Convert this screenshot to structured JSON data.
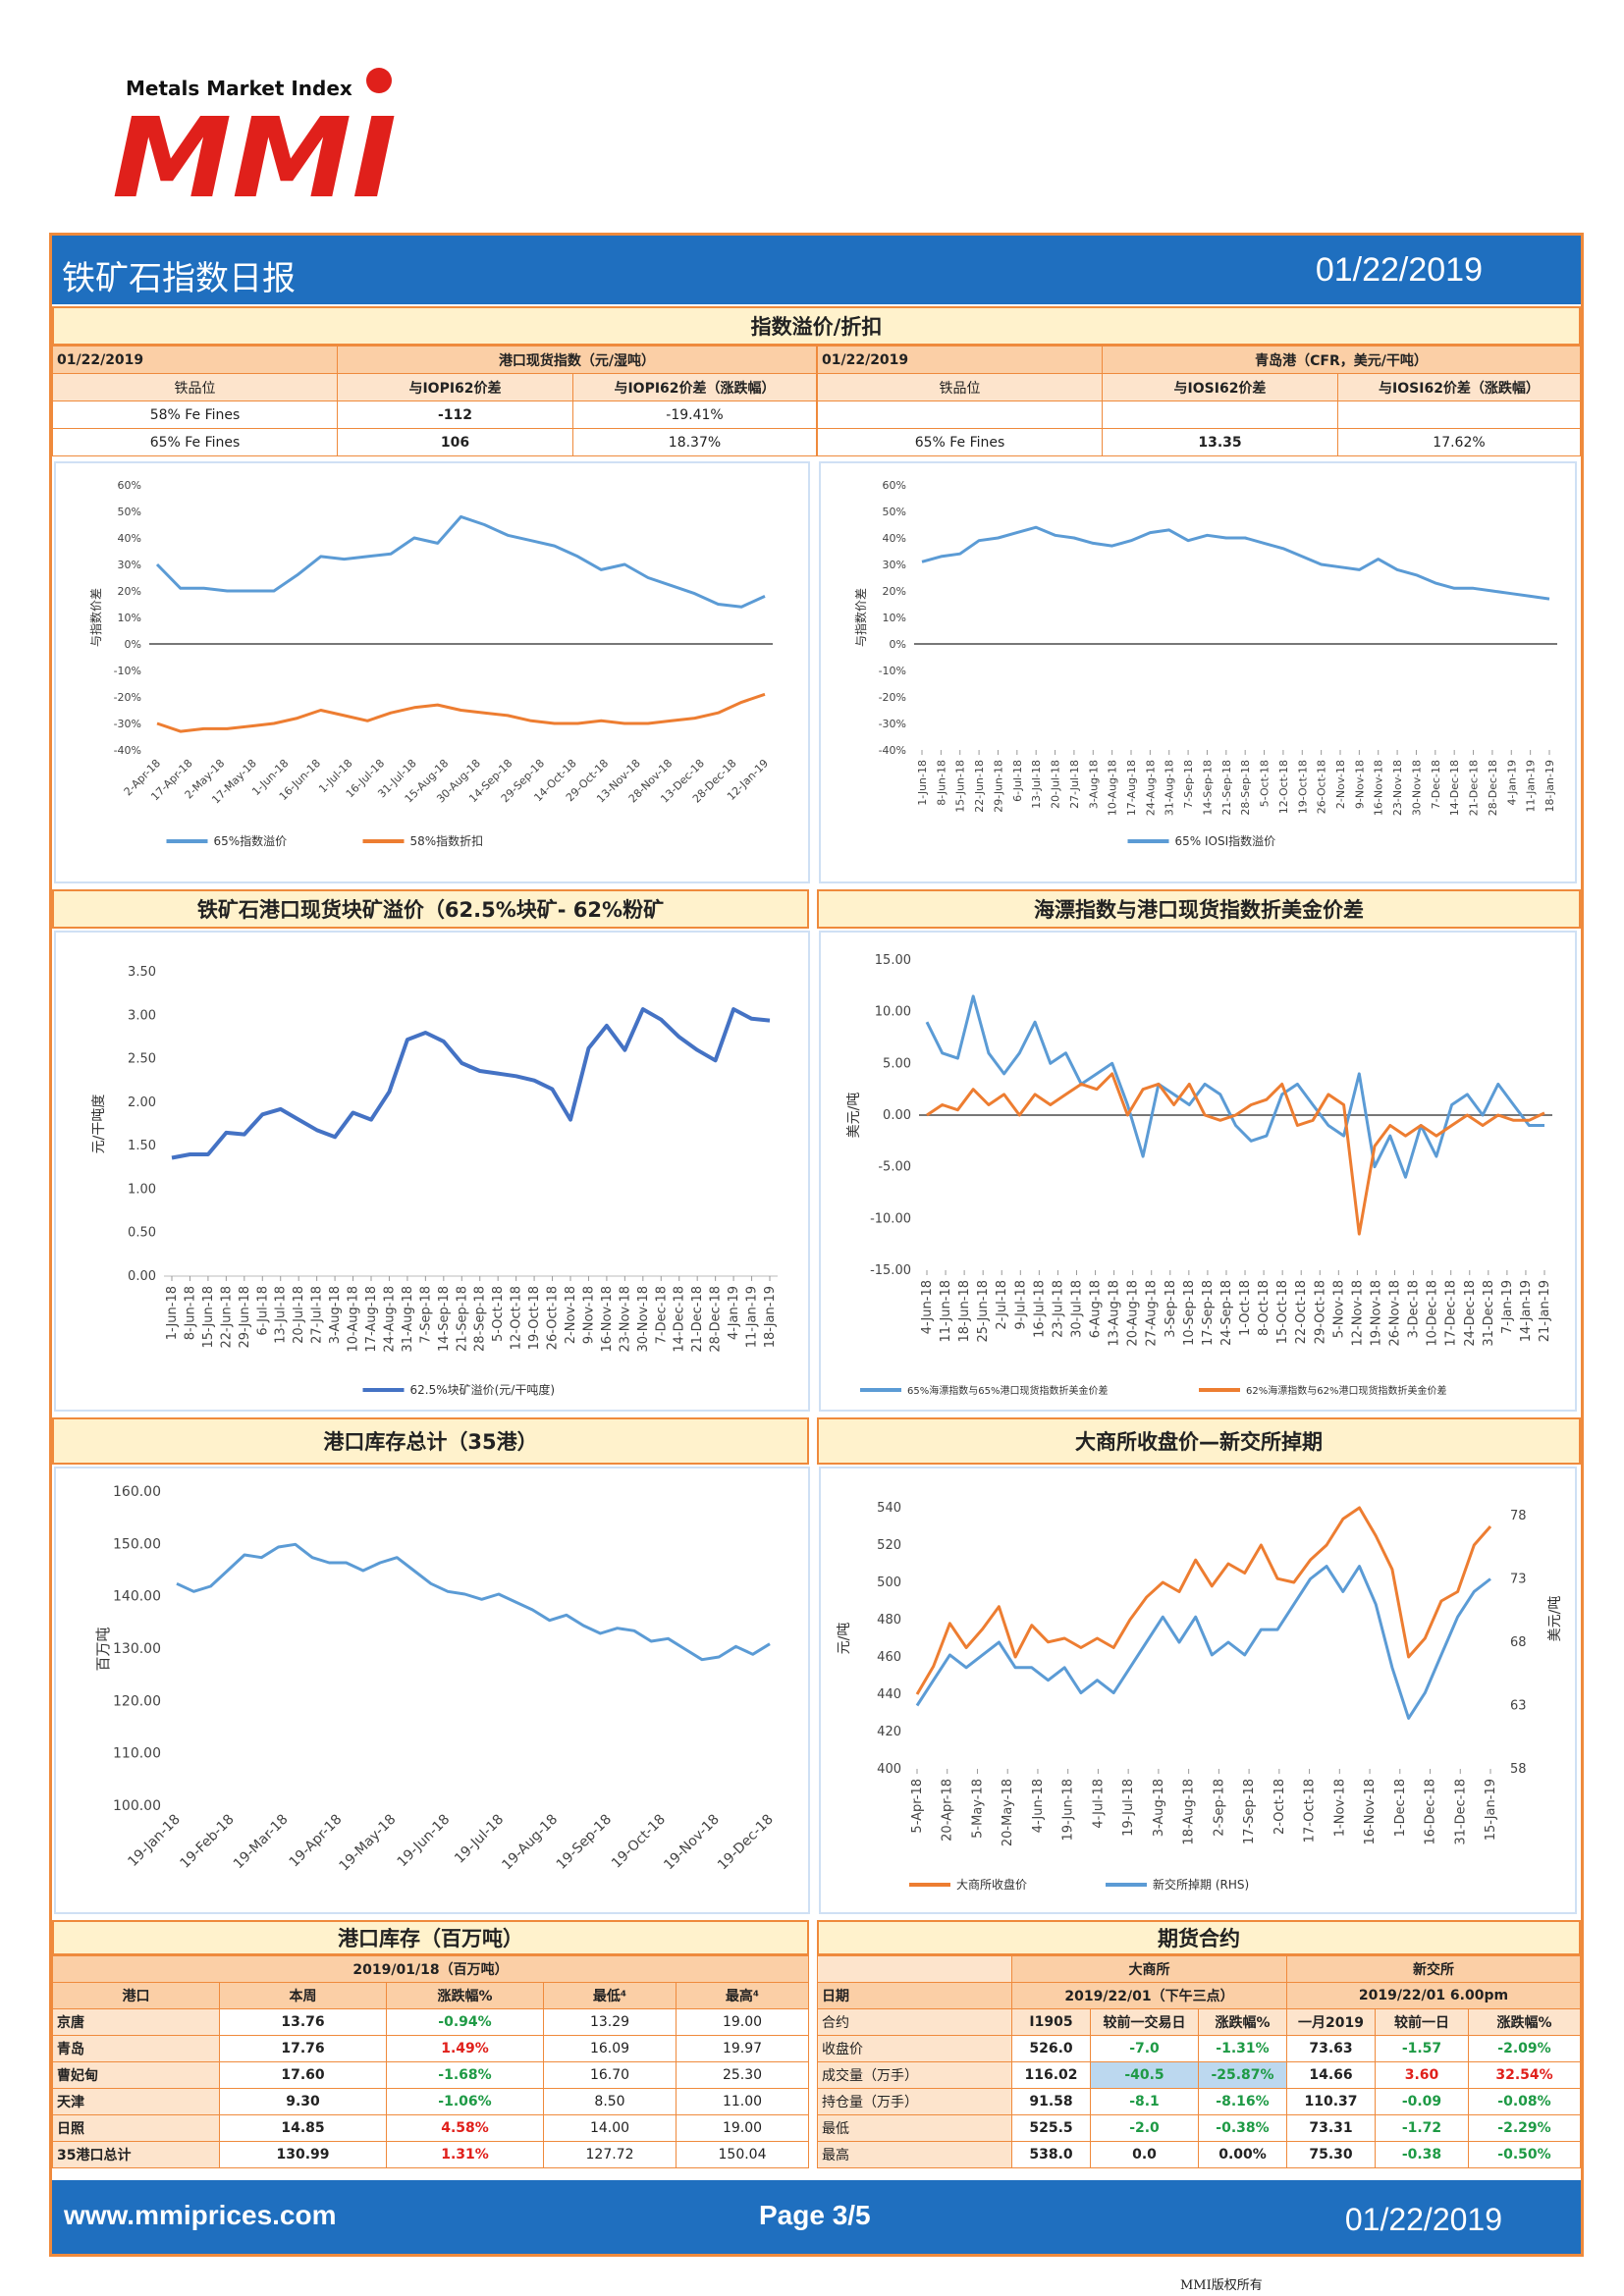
{
  "header": {
    "brand_small": "Metals Market Index",
    "logo_text": "MMI",
    "title": "铁矿石指数日报",
    "date": "01/22/2019"
  },
  "premium": {
    "title": "指数溢价/折扣",
    "left": {
      "date": "01/22/2019",
      "index_label": "港口现货指数（元/湿吨）",
      "col1": "铁品位",
      "col2": "与IOPI62价差",
      "col3": "与IOPI62价差（涨跌幅）",
      "rows": [
        {
          "grade": "58% Fe Fines",
          "diff": "-112",
          "pct": "-19.41%"
        },
        {
          "grade": "65% Fe Fines",
          "diff": "106",
          "pct": "18.37%"
        }
      ]
    },
    "right": {
      "date": "01/22/2019",
      "index_label": "青岛港（CFR，美元/干吨）",
      "col1": "铁品位",
      "col2": "与IOSI62价差",
      "col3": "与IOSI62价差（涨跌幅）",
      "rows": [
        {
          "grade": "",
          "diff": "",
          "pct": ""
        },
        {
          "grade": "65% Fe Fines",
          "diff": "13.35",
          "pct": "17.62%"
        }
      ]
    }
  },
  "chart_data": [
    {
      "type": "line",
      "title": "",
      "ylabel": "与指数价差",
      "ylim": [
        -0.4,
        0.6
      ],
      "yticks": [
        "60%",
        "50%",
        "40%",
        "30%",
        "20%",
        "10%",
        "0%",
        "-10%",
        "-20%",
        "-30%",
        "-40%"
      ],
      "x_ticks": [
        "2-Apr-18",
        "17-Apr-18",
        "2-May-18",
        "17-May-18",
        "1-Jun-18",
        "16-Jun-18",
        "1-Jul-18",
        "16-Jul-18",
        "31-Jul-18",
        "15-Aug-18",
        "30-Aug-18",
        "14-Sep-18",
        "29-Sep-18",
        "14-Oct-18",
        "29-Oct-18",
        "13-Nov-18",
        "28-Nov-18",
        "13-Dec-18",
        "28-Dec-18",
        "12-Jan-19"
      ],
      "series": [
        {
          "name": "65%指数溢价",
          "color": "#5b9bd5",
          "values": [
            0.3,
            0.21,
            0.21,
            0.2,
            0.2,
            0.2,
            0.26,
            0.33,
            0.32,
            0.33,
            0.34,
            0.4,
            0.38,
            0.48,
            0.45,
            0.41,
            0.39,
            0.37,
            0.33,
            0.28,
            0.3,
            0.25,
            0.22,
            0.19,
            0.15,
            0.14,
            0.18
          ]
        },
        {
          "name": "58%指数折扣",
          "color": "#ed7d31",
          "values": [
            -0.3,
            -0.33,
            -0.32,
            -0.32,
            -0.31,
            -0.3,
            -0.28,
            -0.25,
            -0.27,
            -0.29,
            -0.26,
            -0.24,
            -0.23,
            -0.25,
            -0.26,
            -0.27,
            -0.29,
            -0.3,
            -0.3,
            -0.29,
            -0.3,
            -0.3,
            -0.29,
            -0.28,
            -0.26,
            -0.22,
            -0.19
          ]
        }
      ]
    },
    {
      "type": "line",
      "title": "",
      "ylabel": "与指数价差",
      "ylim": [
        -0.4,
        0.6
      ],
      "yticks": [
        "60%",
        "50%",
        "40%",
        "30%",
        "20%",
        "10%",
        "0%",
        "-10%",
        "-20%",
        "-30%",
        "-40%"
      ],
      "x_ticks": [
        "1-Jun-18",
        "8-Jun-18",
        "15-Jun-18",
        "22-Jun-18",
        "29-Jun-18",
        "6-Jul-18",
        "13-Jul-18",
        "20-Jul-18",
        "27-Jul-18",
        "3-Aug-18",
        "10-Aug-18",
        "17-Aug-18",
        "24-Aug-18",
        "31-Aug-18",
        "7-Sep-18",
        "14-Sep-18",
        "21-Sep-18",
        "28-Sep-18",
        "5-Oct-18",
        "12-Oct-18",
        "19-Oct-18",
        "26-Oct-18",
        "2-Nov-18",
        "9-Nov-18",
        "16-Nov-18",
        "23-Nov-18",
        "30-Nov-18",
        "7-Dec-18",
        "14-Dec-18",
        "21-Dec-18",
        "28-Dec-18",
        "4-Jan-19",
        "11-Jan-19",
        "18-Jan-19"
      ],
      "series": [
        {
          "name": "65% IOSI指数溢价",
          "color": "#5b9bd5",
          "values": [
            0.31,
            0.33,
            0.34,
            0.39,
            0.4,
            0.42,
            0.44,
            0.41,
            0.4,
            0.38,
            0.37,
            0.39,
            0.42,
            0.43,
            0.39,
            0.41,
            0.4,
            0.4,
            0.38,
            0.36,
            0.33,
            0.3,
            0.29,
            0.28,
            0.32,
            0.28,
            0.26,
            0.23,
            0.21,
            0.21,
            0.2,
            0.19,
            0.18,
            0.17
          ]
        }
      ]
    },
    {
      "type": "line",
      "title": "铁矿石港口现货块矿溢价（62.5%块矿- 62%粉矿",
      "ylabel": "元/干吨度",
      "ylim": [
        0,
        3.5
      ],
      "yticks": [
        "3.50",
        "3.00",
        "2.50",
        "2.00",
        "1.50",
        "1.00",
        "0.50",
        "0.00"
      ],
      "x_ticks": [
        "1-Jun-18",
        "8-Jun-18",
        "15-Jun-18",
        "22-Jun-18",
        "29-Jun-18",
        "6-Jul-18",
        "13-Jul-18",
        "20-Jul-18",
        "27-Jul-18",
        "3-Aug-18",
        "10-Aug-18",
        "17-Aug-18",
        "24-Aug-18",
        "31-Aug-18",
        "7-Sep-18",
        "14-Sep-18",
        "21-Sep-18",
        "28-Sep-18",
        "5-Oct-18",
        "12-Oct-18",
        "19-Oct-18",
        "26-Oct-18",
        "2-Nov-18",
        "9-Nov-18",
        "16-Nov-18",
        "23-Nov-18",
        "30-Nov-18",
        "7-Dec-18",
        "14-Dec-18",
        "21-Dec-18",
        "28-Dec-18",
        "4-Jan-19",
        "11-Jan-19",
        "18-Jan-19"
      ],
      "series": [
        {
          "name": "62.5%块矿溢价(元/干吨度)",
          "color": "#4472c4",
          "values": [
            1.36,
            1.4,
            1.4,
            1.65,
            1.63,
            1.86,
            1.92,
            1.8,
            1.68,
            1.6,
            1.88,
            1.8,
            2.12,
            2.72,
            2.8,
            2.7,
            2.45,
            2.36,
            2.33,
            2.3,
            2.25,
            2.15,
            1.8,
            2.62,
            2.88,
            2.6,
            3.07,
            2.95,
            2.75,
            2.6,
            2.48,
            3.07,
            2.96,
            2.94
          ]
        }
      ]
    },
    {
      "type": "line",
      "title": "海漂指数与港口现货指数折美金价差",
      "ylabel": "美元/吨",
      "ylim": [
        -15,
        15
      ],
      "yticks": [
        "15.00",
        "10.00",
        "5.00",
        "0.00",
        "-5.00",
        "-10.00",
        "-15.00"
      ],
      "x_ticks": [
        "4-Jun-18",
        "11-Jun-18",
        "18-Jun-18",
        "25-Jun-18",
        "2-Jul-18",
        "9-Jul-18",
        "16-Jul-18",
        "23-Jul-18",
        "30-Jul-18",
        "6-Aug-18",
        "13-Aug-18",
        "20-Aug-18",
        "27-Aug-18",
        "3-Sep-18",
        "10-Sep-18",
        "17-Sep-18",
        "24-Sep-18",
        "1-Oct-18",
        "8-Oct-18",
        "15-Oct-18",
        "22-Oct-18",
        "29-Oct-18",
        "5-Nov-18",
        "12-Nov-18",
        "19-Nov-18",
        "26-Nov-18",
        "3-Dec-18",
        "10-Dec-18",
        "17-Dec-18",
        "24-Dec-18",
        "31-Dec-18",
        "7-Jan-19",
        "14-Jan-19",
        "21-Jan-19"
      ],
      "series": [
        {
          "name": "65%海漂指数与65%港口现货指数折美金价差",
          "color": "#5b9bd5",
          "values": [
            9,
            6,
            5.5,
            11.5,
            6,
            4,
            6,
            9,
            5,
            6,
            3,
            4,
            5,
            1,
            -4,
            3,
            2,
            1,
            3,
            2,
            -1,
            -2.5,
            -2,
            2,
            3,
            1,
            -1,
            -2,
            4,
            -5,
            -2,
            -6,
            -1,
            -4,
            1,
            2,
            0,
            3,
            1,
            -1,
            -1
          ]
        },
        {
          "name": "62%海漂指数与62%港口现货指数折美金价差",
          "color": "#ed7d31",
          "values": [
            0,
            1,
            0.5,
            2.5,
            1,
            2,
            0,
            2,
            1,
            2,
            3,
            2.5,
            4,
            0,
            2.5,
            3,
            1,
            3,
            0,
            -0.5,
            0,
            1,
            1.5,
            3,
            -1,
            -0.5,
            2,
            1,
            -11.5,
            -3,
            -1,
            -2,
            -1,
            -2,
            -1,
            0,
            -1,
            0,
            -0.5,
            -0.5,
            0.2
          ]
        }
      ]
    },
    {
      "type": "line",
      "title": "港口库存总计（35港）",
      "ylabel": "百万吨",
      "ylim": [
        100,
        160
      ],
      "yticks": [
        "160.00",
        "150.00",
        "140.00",
        "130.00",
        "120.00",
        "110.00",
        "100.00"
      ],
      "x_ticks": [
        "19-Jan-18",
        "19-Feb-18",
        "19-Mar-18",
        "19-Apr-18",
        "19-May-18",
        "19-Jun-18",
        "19-Jul-18",
        "19-Aug-18",
        "19-Sep-18",
        "19-Oct-18",
        "19-Nov-18",
        "19-Dec-18"
      ],
      "series": [
        {
          "name": "港口库存总计(35港)",
          "color": "#5b9bd5",
          "values": [
            142.5,
            141,
            142,
            145,
            148,
            147.5,
            149.5,
            150,
            147.5,
            146.5,
            146.5,
            145,
            146.5,
            147.5,
            145,
            142.5,
            141,
            140.5,
            139.5,
            140.5,
            139,
            137.5,
            135.5,
            136.5,
            134.5,
            133,
            134,
            133.5,
            131.5,
            132,
            130,
            128,
            128.5,
            130.5,
            129,
            131
          ]
        }
      ]
    },
    {
      "type": "line",
      "title": "大商所收盘价—新交所掉期",
      "ylabel": "元/吨",
      "y2label": "美元/吨",
      "ylim": [
        400,
        540
      ],
      "y2lim": [
        58,
        78
      ],
      "yticks": [
        "540",
        "520",
        "500",
        "480",
        "460",
        "440",
        "420",
        "400"
      ],
      "y2ticks": [
        "78",
        "73",
        "68",
        "63",
        "58"
      ],
      "x_ticks": [
        "5-Apr-18",
        "20-Apr-18",
        "5-May-18",
        "20-May-18",
        "4-Jun-18",
        "19-Jun-18",
        "4-Jul-18",
        "19-Jul-18",
        "3-Aug-18",
        "18-Aug-18",
        "2-Sep-18",
        "17-Sep-18",
        "2-Oct-18",
        "17-Oct-18",
        "1-Nov-18",
        "16-Nov-18",
        "1-Dec-18",
        "16-Dec-18",
        "31-Dec-18",
        "15-Jan-19"
      ],
      "series": [
        {
          "name": "大商所收盘价",
          "color": "#ed7d31",
          "axis": "left",
          "values": [
            440,
            455,
            478,
            465,
            475,
            487,
            460,
            477,
            468,
            470,
            465,
            470,
            465,
            480,
            492,
            500,
            495,
            512,
            498,
            510,
            505,
            520,
            502,
            500,
            512,
            520,
            534,
            540,
            525,
            507,
            460,
            470,
            490,
            495,
            520,
            530
          ]
        },
        {
          "name": "新交所掉期 (RHS)",
          "color": "#5b9bd5",
          "axis": "right",
          "values": [
            63,
            65,
            67,
            66,
            67,
            68,
            66,
            66,
            65,
            66,
            64,
            65,
            64,
            66,
            68,
            70,
            68,
            70,
            67,
            68,
            67,
            69,
            69,
            71,
            73,
            74,
            72,
            74,
            71,
            66,
            62,
            64,
            67,
            70,
            72,
            73
          ]
        }
      ]
    }
  ],
  "lump": {
    "title": "铁矿石港口现货块矿溢价（62.5%块矿- 62%粉矿"
  },
  "seaborne": {
    "title": "海漂指数与港口现货指数折美金价差"
  },
  "inventory_chart": {
    "title": "港口库存总计（35港）"
  },
  "futures_chart": {
    "title": "大商所收盘价—新交所掉期"
  },
  "inventory_table": {
    "title": "港口库存（百万吨）",
    "date_label": "2019/01/18（百万吨）",
    "headers": [
      "港口",
      "本周",
      "涨跌幅%",
      "最低⁴",
      "最高⁴"
    ],
    "rows": [
      {
        "port": "京唐",
        "week": "13.76",
        "chg": "-0.94%",
        "low": "13.29",
        "high": "19.00"
      },
      {
        "port": "青岛",
        "week": "17.76",
        "chg": "1.49%",
        "low": "16.09",
        "high": "19.97"
      },
      {
        "port": "曹妃甸",
        "week": "17.60",
        "chg": "-1.68%",
        "low": "16.70",
        "high": "25.30"
      },
      {
        "port": "天津",
        "week": "9.30",
        "chg": "-1.06%",
        "low": "8.50",
        "high": "11.00"
      },
      {
        "port": "日照",
        "week": "14.85",
        "chg": "4.58%",
        "low": "14.00",
        "high": "19.00"
      },
      {
        "port": "35港口总计",
        "week": "130.99",
        "chg": "1.31%",
        "low": "127.72",
        "high": "150.04"
      }
    ]
  },
  "futures_table": {
    "title": "期货合约",
    "dce": "大商所",
    "sgx": "新交所",
    "date_label": "日期",
    "dce_date": "2019/22/01（下午三点）",
    "sgx_date": "2019/22/01 6.00pm",
    "sub": [
      "合约",
      "I1905",
      "较前一交易日",
      "涨跌幅%",
      "一月2019",
      "较前一日",
      "涨跌幅%"
    ],
    "rows": [
      {
        "label": "收盘价",
        "a": "526.0",
        "b": "-7.0",
        "c": "-1.31%",
        "d": "73.63",
        "e": "-1.57",
        "f": "-2.09%"
      },
      {
        "label": "成交量（万手）",
        "a": "116.02",
        "b": "-40.5",
        "c": "-25.87%",
        "d": "14.66",
        "e": "3.60",
        "f": "32.54%"
      },
      {
        "label": "持仓量（万手）",
        "a": "91.58",
        "b": "-8.1",
        "c": "-8.16%",
        "d": "110.37",
        "e": "-0.09",
        "f": "-0.08%"
      },
      {
        "label": "最低",
        "a": "525.5",
        "b": "-2.0",
        "c": "-0.38%",
        "d": "73.31",
        "e": "-1.72",
        "f": "-2.29%"
      },
      {
        "label": "最高",
        "a": "538.0",
        "b": "0.0",
        "c": "0.00%",
        "d": "75.30",
        "e": "-0.38",
        "f": "-0.50%"
      }
    ]
  },
  "footer": {
    "url": "www.mmiprices.com",
    "page": "Page 3/5",
    "date": "01/22/2019",
    "copyright": "MMI版权所有"
  },
  "colors": {
    "blue": "#1f6fbf",
    "orange": "#ef8a3c",
    "red": "#e0201b",
    "green": "#1e9a45"
  }
}
